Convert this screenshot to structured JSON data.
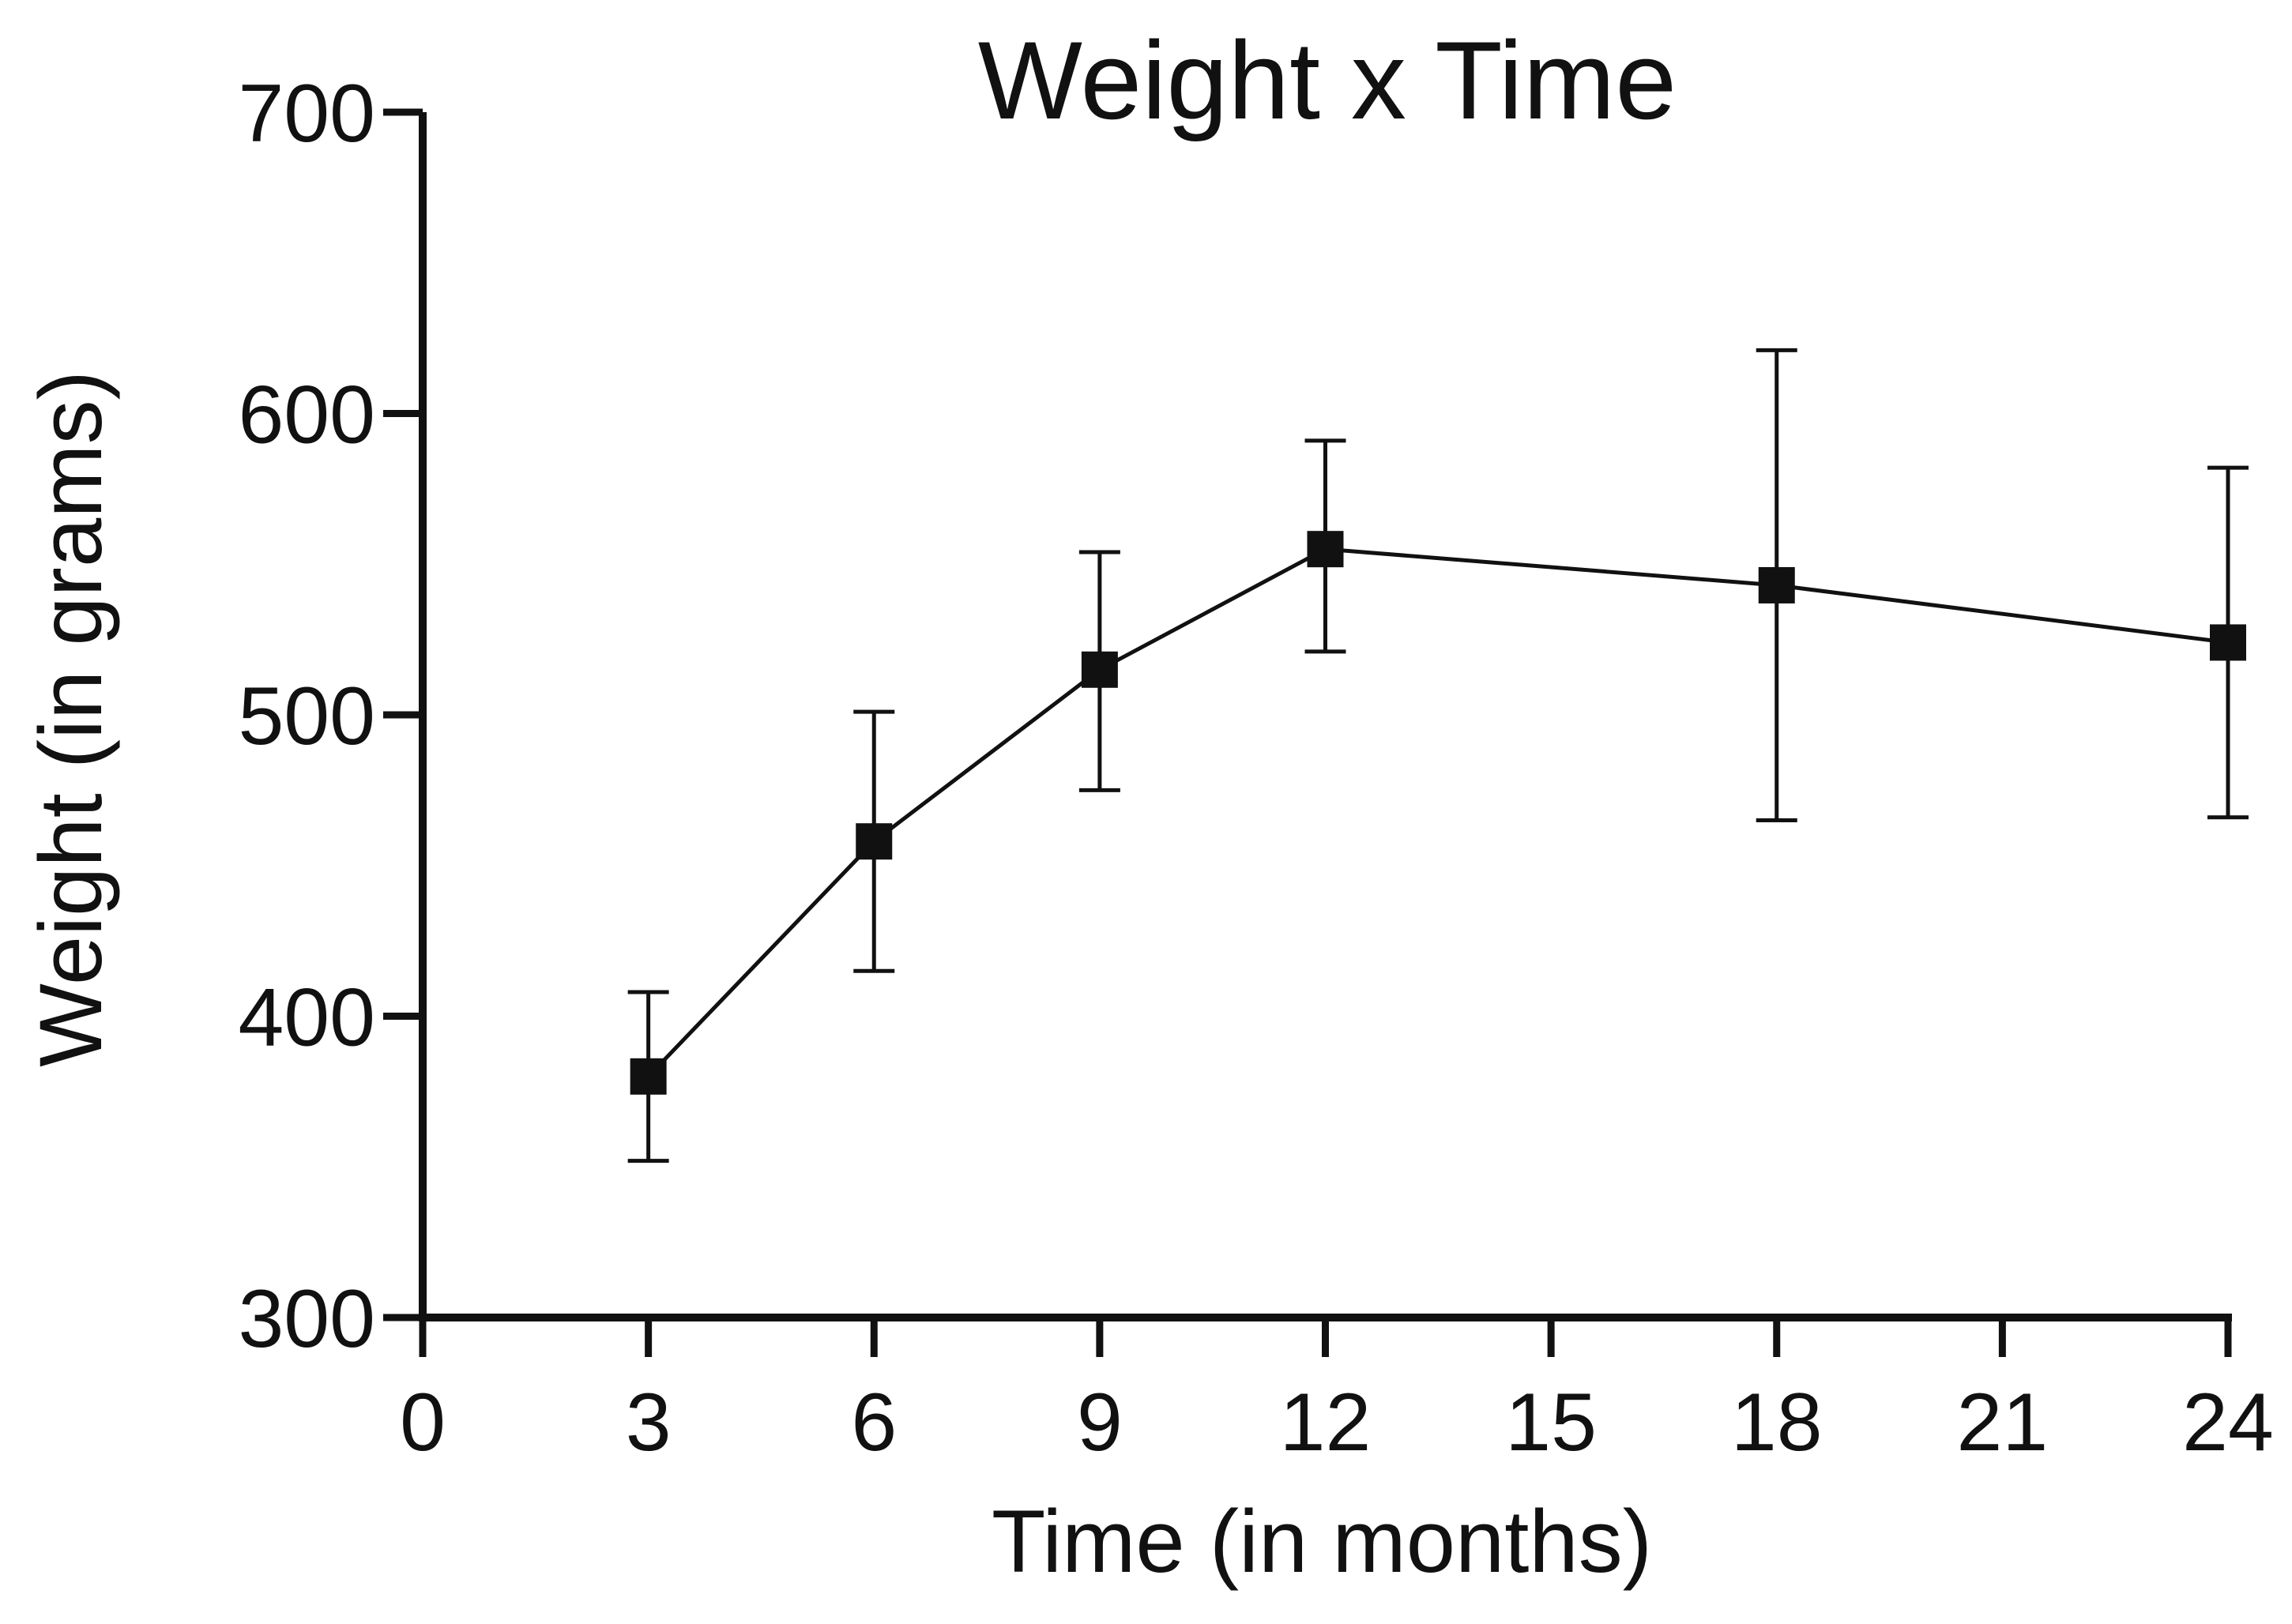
{
  "chart_data": {
    "type": "line",
    "title": "Weight x  Time",
    "xlabel": "Time (in months)",
    "ylabel": "Weight (in grams)",
    "xlim": [
      0,
      24
    ],
    "ylim": [
      300,
      700
    ],
    "x_ticks": [
      "0",
      "3",
      "6",
      "9",
      "12",
      "15",
      "18",
      "21",
      "24"
    ],
    "y_ticks": [
      "300",
      "400",
      "500",
      "600",
      "700"
    ],
    "grid": false,
    "marker": "square",
    "color": "#111111",
    "series": [
      {
        "x": [
          3,
          6,
          9,
          12,
          18,
          24
        ],
        "y": [
          380,
          458,
          515,
          555,
          543,
          524
        ],
        "error_low": [
          352,
          415,
          475,
          521,
          465,
          466
        ],
        "error_high": [
          408,
          501,
          554,
          591,
          621,
          582
        ]
      }
    ]
  }
}
